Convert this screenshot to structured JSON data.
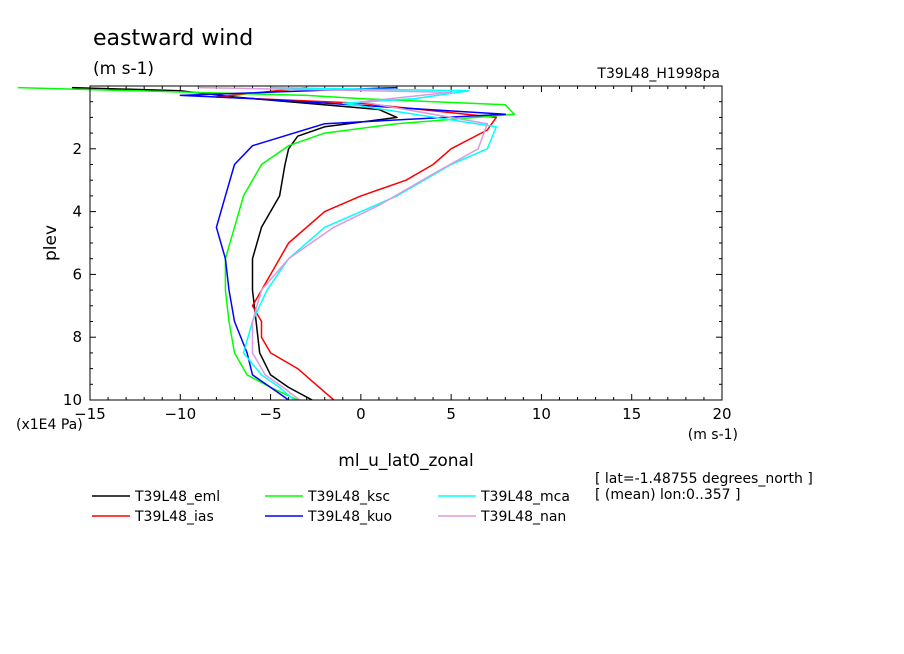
{
  "chart_data": {
    "type": "line",
    "title": "eastward wind",
    "units_label": "(m s-1)",
    "run_label": "T39L48_H1998pa",
    "xlabel": "ml_u_lat0_zonal",
    "x_units_label": "(m s-1)",
    "ylabel": "plev",
    "y_scale_label": "(x1E4 Pa)",
    "xlim": [
      -15,
      20
    ],
    "ylim": [
      10,
      0
    ],
    "x_ticks": [
      "−15",
      "−10",
      "−5",
      "0",
      "5",
      "10",
      "15",
      "20"
    ],
    "y_ticks": [
      "2",
      "4",
      "6",
      "8",
      "10"
    ],
    "info_lines": [
      "[ lat=-1.48755 degrees_north ]",
      "[ (mean) lon:0..357 ]"
    ],
    "legend_position": "bottom",
    "series": [
      {
        "name": "T39L48_eml",
        "color": "#000000",
        "points": [
          [
            -16,
            0.05
          ],
          [
            -10,
            0.15
          ],
          [
            -7,
            0.35
          ],
          [
            1,
            0.75
          ],
          [
            2,
            1.0
          ],
          [
            -2,
            1.3
          ],
          [
            -3.5,
            1.6
          ],
          [
            -4,
            2.0
          ],
          [
            -4.2,
            2.5
          ],
          [
            -4.5,
            3.5
          ],
          [
            -5.5,
            4.5
          ],
          [
            -6,
            5.5
          ],
          [
            -6,
            6.5
          ],
          [
            -5.8,
            7.5
          ],
          [
            -5.6,
            8.5
          ],
          [
            -5,
            9.2
          ],
          [
            -4,
            9.6
          ],
          [
            -2.7,
            10
          ]
        ]
      },
      {
        "name": "T39L48_ias",
        "color": "#ff0000",
        "points": [
          [
            -3,
            0.05
          ],
          [
            -8,
            0.35
          ],
          [
            0,
            0.55
          ],
          [
            7.5,
            1.0
          ],
          [
            7,
            1.4
          ],
          [
            5,
            2.0
          ],
          [
            4,
            2.5
          ],
          [
            2.5,
            3.0
          ],
          [
            0,
            3.5
          ],
          [
            -2,
            4.0
          ],
          [
            -4,
            5.0
          ],
          [
            -5,
            6.0
          ],
          [
            -6,
            7.0
          ],
          [
            -5.5,
            7.5
          ],
          [
            -5.5,
            8.0
          ],
          [
            -5,
            8.5
          ],
          [
            -3.5,
            9.0
          ],
          [
            -2.5,
            9.5
          ],
          [
            -1.5,
            10
          ]
        ]
      },
      {
        "name": "T39L48_ksc",
        "color": "#00ff00",
        "points": [
          [
            -19,
            0.05
          ],
          [
            -3,
            0.3
          ],
          [
            0,
            0.4
          ],
          [
            8,
            0.6
          ],
          [
            8.5,
            0.9
          ],
          [
            2,
            1.2
          ],
          [
            -2,
            1.5
          ],
          [
            -4,
            1.9
          ],
          [
            -5.5,
            2.5
          ],
          [
            -6.5,
            3.5
          ],
          [
            -7,
            4.5
          ],
          [
            -7.5,
            5.5
          ],
          [
            -7.5,
            6.5
          ],
          [
            -7.3,
            7.5
          ],
          [
            -7,
            8.5
          ],
          [
            -6.3,
            9.2
          ],
          [
            -5,
            9.6
          ],
          [
            -3.5,
            10
          ]
        ]
      },
      {
        "name": "T39L48_kuo",
        "color": "#0000ff",
        "points": [
          [
            2,
            0.05
          ],
          [
            -10,
            0.3
          ],
          [
            -6,
            0.4
          ],
          [
            8,
            0.9
          ],
          [
            -2,
            1.2
          ],
          [
            -6,
            1.9
          ],
          [
            -7,
            2.5
          ],
          [
            -7.5,
            3.5
          ],
          [
            -8,
            4.5
          ],
          [
            -7.5,
            5.5
          ],
          [
            -7.3,
            6.5
          ],
          [
            -7,
            7.5
          ],
          [
            -6.3,
            8.5
          ],
          [
            -6,
            9.2
          ],
          [
            -5,
            9.6
          ],
          [
            -4,
            10
          ]
        ]
      },
      {
        "name": "T39L48_mca",
        "color": "#00ffff",
        "points": [
          [
            -5,
            0.05
          ],
          [
            6,
            0.15
          ],
          [
            3,
            0.4
          ],
          [
            -1,
            0.55
          ],
          [
            7.5,
            1.3
          ],
          [
            7,
            2.0
          ],
          [
            5,
            2.5
          ],
          [
            2,
            3.5
          ],
          [
            -2,
            4.5
          ],
          [
            -4,
            5.5
          ],
          [
            -5.2,
            6.5
          ],
          [
            -6,
            7.5
          ],
          [
            -6.5,
            8.5
          ],
          [
            -5.5,
            9.2
          ],
          [
            -4.5,
            9.6
          ],
          [
            -3.7,
            10
          ]
        ]
      },
      {
        "name": "T39L48_nan",
        "color": "#dd99dd",
        "points": [
          [
            -9,
            0.05
          ],
          [
            5,
            0.2
          ],
          [
            0,
            0.5
          ],
          [
            7,
            1.2
          ],
          [
            6.5,
            2.0
          ],
          [
            4,
            2.8
          ],
          [
            1,
            3.8
          ],
          [
            -1.5,
            4.5
          ],
          [
            -4,
            5.5
          ],
          [
            -5.5,
            6.5
          ],
          [
            -6,
            7.5
          ],
          [
            -6,
            8.5
          ],
          [
            -5.3,
            9.2
          ],
          [
            -4.3,
            9.6
          ],
          [
            -3.4,
            10
          ]
        ]
      }
    ]
  }
}
